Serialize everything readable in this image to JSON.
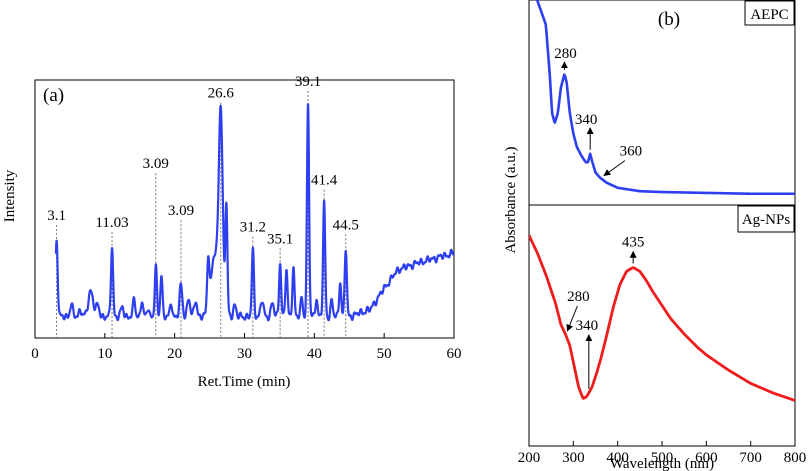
{
  "colors": {
    "chromatogram": "#2d3ff0",
    "aepc": "#2d3ff0",
    "agnps": "#ee1c1c",
    "axis": "#000000",
    "guide": "#555555"
  },
  "chart_data": [
    {
      "id": "a",
      "type": "line",
      "panel_label": "(a)",
      "xlabel": "Ret.Time (min)",
      "ylabel": "Intensity",
      "xlim": [
        0,
        60
      ],
      "ylim": [
        0,
        100
      ],
      "xticks": [
        0,
        10,
        20,
        30,
        40,
        50,
        60
      ],
      "baseline": 7,
      "peaks": [
        {
          "x": 3.1,
          "y": 40,
          "w": 0.15,
          "label": "3.1"
        },
        {
          "x": 5.2,
          "y": 12,
          "w": 0.2
        },
        {
          "x": 6.5,
          "y": 10,
          "w": 0.2
        },
        {
          "x": 8.0,
          "y": 18,
          "w": 0.35
        },
        {
          "x": 9.0,
          "y": 12,
          "w": 0.2
        },
        {
          "x": 11.03,
          "y": 37,
          "w": 0.15,
          "label": "11.03"
        },
        {
          "x": 12.5,
          "y": 11,
          "w": 0.2
        },
        {
          "x": 14.2,
          "y": 15,
          "w": 0.15
        },
        {
          "x": 15.3,
          "y": 14,
          "w": 0.15
        },
        {
          "x": 16.2,
          "y": 11,
          "w": 0.15
        },
        {
          "x": 17.3,
          "y": 28,
          "w": 0.15,
          "label": "3.09",
          "guide_top": 68
        },
        {
          "x": 18.1,
          "y": 25,
          "w": 0.15
        },
        {
          "x": 19.5,
          "y": 13,
          "w": 0.15
        },
        {
          "x": 20.9,
          "y": 20,
          "w": 0.2,
          "label": "3.09",
          "guide_top": 48
        },
        {
          "x": 22.0,
          "y": 15,
          "w": 0.2
        },
        {
          "x": 23.0,
          "y": 14,
          "w": 0.2
        },
        {
          "x": 24.8,
          "y": 29,
          "w": 0.15
        },
        {
          "x": 25.7,
          "y": 33,
          "w": 0.5
        },
        {
          "x": 26.6,
          "y": 92,
          "w": 0.28,
          "label": "26.6"
        },
        {
          "x": 27.4,
          "y": 54,
          "w": 0.15
        },
        {
          "x": 28.6,
          "y": 12,
          "w": 0.2
        },
        {
          "x": 31.2,
          "y": 35,
          "w": 0.15,
          "label": "31.2"
        },
        {
          "x": 32.5,
          "y": 14,
          "w": 0.2
        },
        {
          "x": 34.0,
          "y": 13,
          "w": 0.2
        },
        {
          "x": 35.1,
          "y": 30,
          "w": 0.15,
          "label": "35.1"
        },
        {
          "x": 36.0,
          "y": 27,
          "w": 0.15
        },
        {
          "x": 37.0,
          "y": 28,
          "w": 0.15
        },
        {
          "x": 38.2,
          "y": 15,
          "w": 0.15
        },
        {
          "x": 39.1,
          "y": 97,
          "w": 0.15,
          "label": "39.1"
        },
        {
          "x": 40.3,
          "y": 15,
          "w": 0.15
        },
        {
          "x": 41.4,
          "y": 55,
          "w": 0.15,
          "label": "41.4"
        },
        {
          "x": 42.5,
          "y": 14,
          "w": 0.15
        },
        {
          "x": 43.7,
          "y": 22,
          "w": 0.15
        },
        {
          "x": 44.5,
          "y": 36,
          "w": 0.15,
          "label": "44.5"
        }
      ],
      "drift": [
        [
          0,
          0
        ],
        [
          45,
          0
        ],
        [
          48,
          3
        ],
        [
          50,
          12
        ],
        [
          52,
          20
        ],
        [
          55,
          23
        ],
        [
          60,
          27
        ]
      ]
    },
    {
      "id": "b",
      "type": "line",
      "panel_label": "(b)",
      "xlabel": "Wavelength (nm)",
      "ylabel": "Absorbance (a.u.)",
      "xlim": [
        200,
        800
      ],
      "xticks": [
        200,
        300,
        400,
        500,
        600,
        700,
        800
      ],
      "panels": [
        {
          "name": "AEPC",
          "ylim": [
            0,
            1
          ],
          "series": [
            [
              200,
              1.3
            ],
            [
              238,
              1.02
            ],
            [
              247,
              0.72
            ],
            [
              252,
              0.5
            ],
            [
              258,
              0.44
            ],
            [
              265,
              0.5
            ],
            [
              272,
              0.65
            ],
            [
              280,
              0.73
            ],
            [
              285,
              0.68
            ],
            [
              292,
              0.5
            ],
            [
              300,
              0.38
            ],
            [
              308,
              0.3
            ],
            [
              318,
              0.25
            ],
            [
              328,
              0.21
            ],
            [
              333,
              0.21
            ],
            [
              338,
              0.26
            ],
            [
              343,
              0.21
            ],
            [
              350,
              0.15
            ],
            [
              360,
              0.12
            ],
            [
              375,
              0.09
            ],
            [
              400,
              0.06
            ],
            [
              450,
              0.04
            ],
            [
              500,
              0.035
            ],
            [
              600,
              0.03
            ],
            [
              700,
              0.025
            ],
            [
              800,
              0.025
            ]
          ],
          "annotations": [
            {
              "label": "280",
              "x": 280,
              "y": 0.73
            },
            {
              "label": "340",
              "x": 338,
              "y": 0.26
            },
            {
              "label": "360",
              "x": 360,
              "y": 0.12
            }
          ]
        },
        {
          "name": "Ag-NPs",
          "ylim": [
            0,
            1
          ],
          "series": [
            [
              200,
              0.92
            ],
            [
              220,
              0.82
            ],
            [
              240,
              0.7
            ],
            [
              260,
              0.56
            ],
            [
              272,
              0.45
            ],
            [
              282,
              0.4
            ],
            [
              292,
              0.34
            ],
            [
              302,
              0.23
            ],
            [
              312,
              0.12
            ],
            [
              322,
              0.06
            ],
            [
              330,
              0.07
            ],
            [
              342,
              0.12
            ],
            [
              352,
              0.19
            ],
            [
              362,
              0.27
            ],
            [
              375,
              0.39
            ],
            [
              390,
              0.54
            ],
            [
              405,
              0.66
            ],
            [
              420,
              0.73
            ],
            [
              435,
              0.75
            ],
            [
              450,
              0.73
            ],
            [
              465,
              0.68
            ],
            [
              480,
              0.62
            ],
            [
              500,
              0.55
            ],
            [
              520,
              0.48
            ],
            [
              550,
              0.4
            ],
            [
              580,
              0.33
            ],
            [
              600,
              0.29
            ],
            [
              650,
              0.21
            ],
            [
              700,
              0.14
            ],
            [
              750,
              0.09
            ],
            [
              800,
              0.05
            ]
          ],
          "annotations": [
            {
              "label": "280",
              "x": 282,
              "y": 0.4
            },
            {
              "label": "340",
              "x": 335,
              "y": 0.08
            },
            {
              "label": "435",
              "x": 435,
              "y": 0.75
            }
          ]
        }
      ]
    }
  ]
}
